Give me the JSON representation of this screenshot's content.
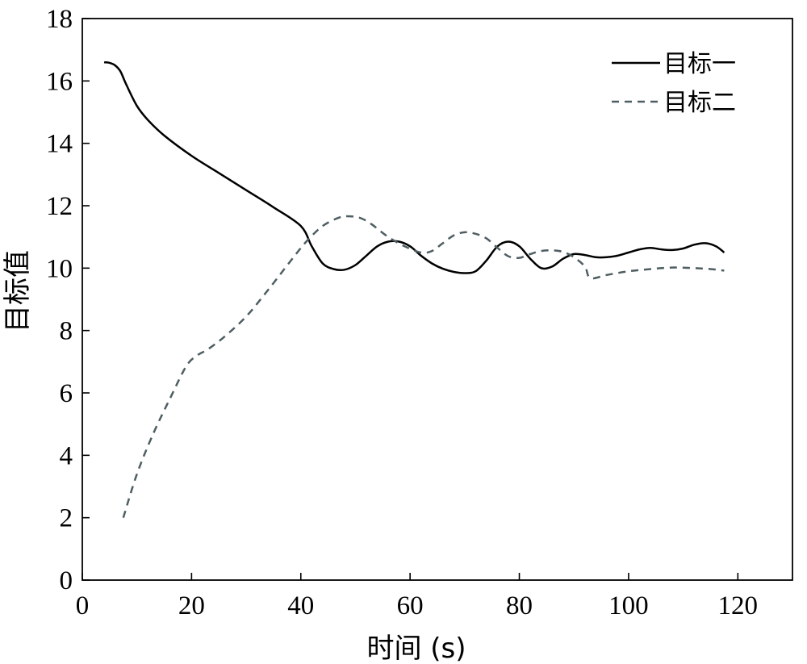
{
  "chart_data": {
    "type": "line",
    "xlabel": "时间 (s)",
    "ylabel": "目标值",
    "xlim": [
      0,
      130
    ],
    "ylim": [
      0,
      18
    ],
    "xticks": [
      0,
      20,
      40,
      60,
      80,
      100,
      120
    ],
    "yticks": [
      0,
      2,
      4,
      6,
      8,
      10,
      12,
      14,
      16,
      18
    ],
    "legend_position": "top-right",
    "grid": false,
    "series": [
      {
        "name": "目标一",
        "style": "solid",
        "color": "#000000",
        "x": [
          4,
          5,
          6,
          7,
          8,
          10,
          12,
          15,
          20,
          25,
          30,
          35,
          40,
          42,
          44,
          46,
          48,
          50,
          52,
          54,
          56,
          58,
          60,
          62,
          64,
          66,
          68,
          70,
          72,
          74,
          76,
          78,
          80,
          82,
          84,
          86,
          88,
          90,
          92,
          94,
          96,
          98,
          100,
          102,
          104,
          106,
          108,
          110,
          112,
          114,
          116,
          117.5
        ],
        "y": [
          16.6,
          16.58,
          16.5,
          16.3,
          15.9,
          15.2,
          14.75,
          14.25,
          13.6,
          13.05,
          12.5,
          11.95,
          11.35,
          10.7,
          10.15,
          9.97,
          9.95,
          10.1,
          10.4,
          10.7,
          10.85,
          10.85,
          10.7,
          10.4,
          10.15,
          9.98,
          9.88,
          9.84,
          9.9,
          10.25,
          10.7,
          10.85,
          10.7,
          10.3,
          10.0,
          10.05,
          10.3,
          10.45,
          10.42,
          10.35,
          10.35,
          10.4,
          10.5,
          10.6,
          10.65,
          10.6,
          10.58,
          10.63,
          10.75,
          10.8,
          10.7,
          10.5
        ]
      },
      {
        "name": "目标二",
        "style": "dashed",
        "color": "#4e5e62",
        "x": [
          7.5,
          10,
          13,
          16,
          19,
          21,
          23,
          26,
          30,
          34,
          38,
          41,
          44,
          47,
          49,
          51,
          53,
          56,
          59,
          62,
          64,
          66,
          68,
          70,
          72,
          74,
          76,
          78,
          80,
          82,
          84,
          86,
          88,
          90,
          92,
          93,
          96,
          100,
          104,
          108,
          112,
          115,
          117.5
        ],
        "y": [
          2.0,
          3.4,
          4.7,
          5.8,
          6.85,
          7.2,
          7.4,
          7.8,
          8.45,
          9.3,
          10.2,
          10.85,
          11.35,
          11.62,
          11.66,
          11.6,
          11.4,
          11.0,
          10.7,
          10.5,
          10.55,
          10.8,
          11.05,
          11.15,
          11.1,
          10.95,
          10.65,
          10.38,
          10.33,
          10.45,
          10.55,
          10.57,
          10.52,
          10.35,
          10.05,
          9.68,
          9.78,
          9.9,
          9.97,
          10.02,
          10.0,
          9.97,
          9.92
        ]
      }
    ]
  }
}
